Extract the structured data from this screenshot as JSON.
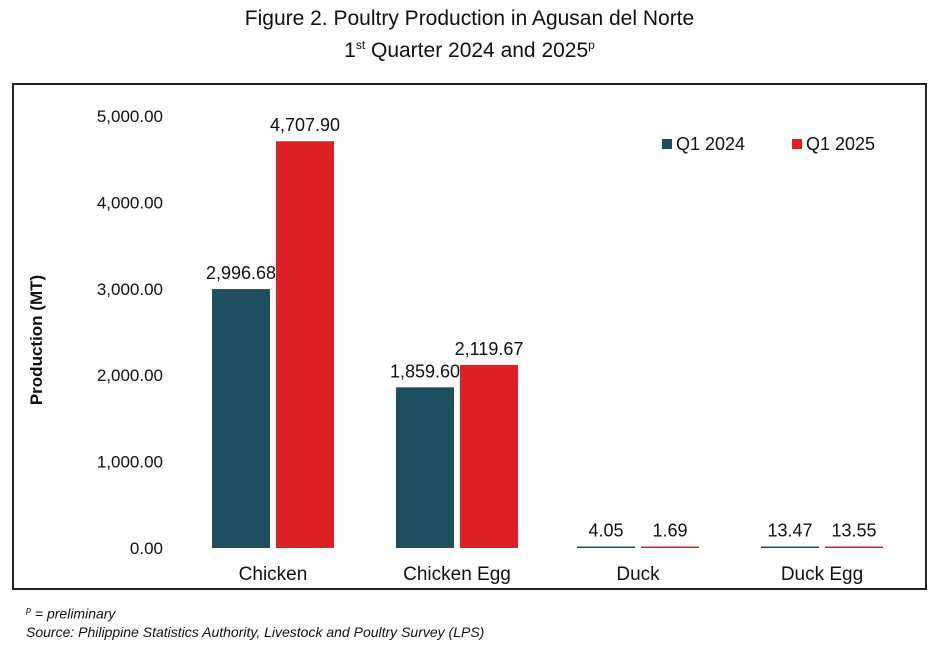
{
  "title": {
    "line1": "Figure 2. Poultry Production in Agusan del Norte",
    "line2_prefix": "1",
    "line2_ordinal": "st",
    "line2_mid": " Quarter 2024 and 2025",
    "line2_sup": "p"
  },
  "footnote": {
    "marker": "p",
    "note": " = preliminary",
    "source": "Source: Philippine Statistics Authority, Livestock and Poultry Survey (LPS)"
  },
  "colors": {
    "q1_2024": "#1f4f5e",
    "q1_2025": "#dd1f26"
  },
  "chart_data": {
    "type": "bar",
    "title": "Figure 2. Poultry Production in Agusan del Norte 1st Quarter 2024 and 2025p",
    "xlabel": "",
    "ylabel": "Production (MT)",
    "ylim": [
      0,
      5000
    ],
    "yticks": [
      "0.00",
      "1,000.00",
      "2,000.00",
      "3,000.00",
      "4,000.00",
      "5,000.00"
    ],
    "categories": [
      "Chicken",
      "Chicken Egg",
      "Duck",
      "Duck Egg"
    ],
    "series": [
      {
        "name": "Q1 2024",
        "values": [
          2996.68,
          1859.6,
          4.05,
          13.47
        ],
        "labels": [
          "2,996.68",
          "1,859.60",
          "4.05",
          "13.47"
        ]
      },
      {
        "name": "Q1 2025",
        "values": [
          4707.9,
          2119.67,
          1.69,
          13.55
        ],
        "labels": [
          "4,707.90",
          "2,119.67",
          "1.69",
          "13.55"
        ]
      }
    ],
    "grid": false,
    "legend": "top-right"
  }
}
